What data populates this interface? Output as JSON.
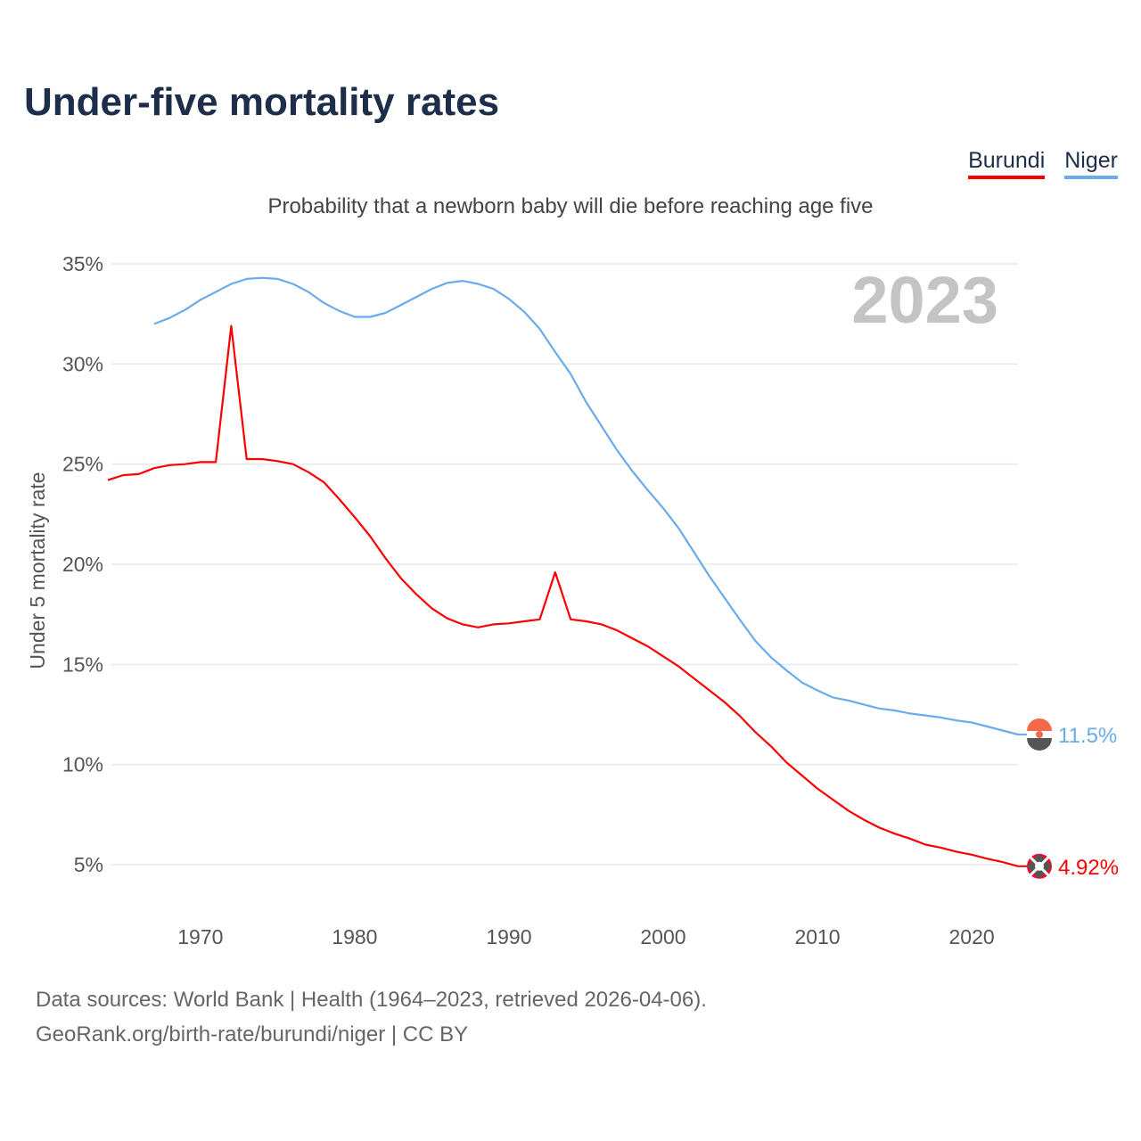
{
  "title": "Under-five mortality rates",
  "legend": [
    {
      "name": "Burundi",
      "color": "#ff0000"
    },
    {
      "name": "Niger",
      "color": "#6aaceb"
    }
  ],
  "footer": {
    "line1": "Data sources: World Bank | Health (1964–2023, retrieved 2026-04-06).",
    "line2": "GeoRank.org/birth-rate/burundi/niger | CC BY"
  },
  "chart_data": {
    "type": "line",
    "title": "Under-five mortality rates",
    "subtitle": "Probability that a newborn baby will die before reaching age five",
    "ylabel": "Under 5 mortality rate",
    "xlabel": "",
    "year_label": "2023",
    "xlim": [
      1964,
      2023
    ],
    "ylim": [
      2.5,
      35
    ],
    "xticks": [
      1970,
      1980,
      1990,
      2000,
      2010,
      2020
    ],
    "yticks": [
      5,
      10,
      15,
      20,
      25,
      30,
      35
    ],
    "ytick_labels": [
      "5%",
      "10%",
      "15%",
      "20%",
      "25%",
      "30%",
      "35%"
    ],
    "grid": true,
    "legend_position": "top-right",
    "series": [
      {
        "name": "Burundi",
        "color": "#ff0000",
        "start_year": 1964,
        "end_label": "4.92%",
        "flag": "burundi-flag",
        "values": [
          24.2,
          24.45,
          24.5,
          24.8,
          24.95,
          25.0,
          25.1,
          25.1,
          31.9,
          25.25,
          25.25,
          25.15,
          25.0,
          24.6,
          24.1,
          23.25,
          22.35,
          21.4,
          20.3,
          19.3,
          18.5,
          17.8,
          17.3,
          17.0,
          16.85,
          17.0,
          17.05,
          17.15,
          17.25,
          19.6,
          17.25,
          17.15,
          17.0,
          16.7,
          16.3,
          15.9,
          15.4,
          14.9,
          14.3,
          13.7,
          13.1,
          12.4,
          11.6,
          10.9,
          10.1,
          9.45,
          8.8,
          8.25,
          7.7,
          7.25,
          6.85,
          6.55,
          6.3,
          6.0,
          5.85,
          5.65,
          5.5,
          5.3,
          5.13,
          4.92
        ]
      },
      {
        "name": "Niger",
        "color": "#6aaceb",
        "start_year": 1967,
        "end_label": "11.5%",
        "flag": "niger-flag",
        "values": [
          32.0,
          32.3,
          32.7,
          33.2,
          33.6,
          34.0,
          34.25,
          34.3,
          34.25,
          34.0,
          33.6,
          33.05,
          32.65,
          32.35,
          32.35,
          32.55,
          32.95,
          33.35,
          33.75,
          34.05,
          34.15,
          34.0,
          33.75,
          33.25,
          32.6,
          31.75,
          30.6,
          29.5,
          28.1,
          26.9,
          25.7,
          24.65,
          23.7,
          22.8,
          21.8,
          20.6,
          19.4,
          18.3,
          17.2,
          16.15,
          15.35,
          14.7,
          14.1,
          13.7,
          13.35,
          13.2,
          13.0,
          12.8,
          12.7,
          12.55,
          12.45,
          12.35,
          12.2,
          12.1,
          11.9,
          11.7,
          11.5
        ]
      }
    ]
  }
}
